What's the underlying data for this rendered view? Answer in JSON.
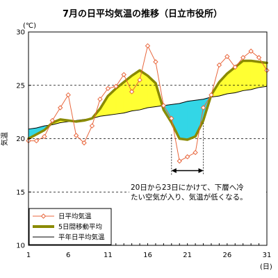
{
  "chart_data": {
    "type": "line",
    "title": "7月の日平均気温の推移（日立市役所）",
    "y_unit": "(℃)",
    "ylabel": "気温",
    "x_unit": "(日)",
    "xlim": [
      1,
      31
    ],
    "ylim": [
      10,
      30
    ],
    "x_ticks": [
      1,
      6,
      11,
      16,
      21,
      26,
      31
    ],
    "y_ticks": [
      10,
      15,
      20,
      25,
      30
    ],
    "dashed_gridlines": [
      15,
      20,
      25
    ],
    "x": [
      1,
      2,
      3,
      4,
      5,
      6,
      7,
      8,
      9,
      10,
      11,
      12,
      13,
      14,
      15,
      16,
      17,
      18,
      19,
      20,
      21,
      22,
      23,
      24,
      25,
      26,
      27,
      28,
      29,
      30,
      31
    ],
    "series": [
      {
        "name": "日平均気温",
        "style": "line-with-hollow-diamond-markers",
        "color": "#e8663c",
        "values": [
          19.8,
          19.8,
          20.2,
          21.7,
          22.9,
          24.1,
          20.3,
          19.6,
          21.2,
          23.7,
          24.7,
          24.9,
          26.0,
          24.4,
          25.5,
          28.7,
          27.2,
          23.1,
          21.9,
          17.9,
          18.3,
          18.7,
          22.9,
          24.1,
          26.9,
          27.7,
          26.7,
          27.6,
          28.2,
          27.6,
          26.4
        ]
      },
      {
        "name": "5日間移動平均",
        "style": "thick-line",
        "color": "#8a8a00",
        "values": [
          20.0,
          20.4,
          20.8,
          21.5,
          21.8,
          21.7,
          21.6,
          21.7,
          21.9,
          22.8,
          24.0,
          24.7,
          25.3,
          25.9,
          26.4,
          25.9,
          25.2,
          22.7,
          21.5,
          20.0,
          19.9,
          20.2,
          21.7,
          24.1,
          25.3,
          26.1,
          26.7,
          27.3,
          27.3,
          27.2,
          27.1
        ]
      },
      {
        "name": "平年日平均気温",
        "style": "thin-line",
        "color": "#000000",
        "values": [
          20.9,
          21.0,
          21.2,
          21.3,
          21.5,
          21.6,
          21.7,
          21.8,
          21.9,
          22.1,
          22.2,
          22.3,
          22.4,
          22.6,
          22.7,
          22.9,
          23.0,
          23.1,
          23.2,
          23.3,
          23.5,
          23.6,
          23.7,
          23.9,
          24.0,
          24.2,
          24.3,
          24.5,
          24.6,
          24.8,
          24.9
        ]
      }
    ],
    "fill_above_normal_color": "#ffff33",
    "fill_below_normal_color": "#33d6e6",
    "annotation": {
      "lines": [
        "20日から23日にかけて、下層へ冷",
        "たい空気が入り、気温が低くなる。"
      ],
      "span_days": [
        19,
        23
      ],
      "span_y": 17.0
    },
    "legend_placement": "bottom-left"
  }
}
